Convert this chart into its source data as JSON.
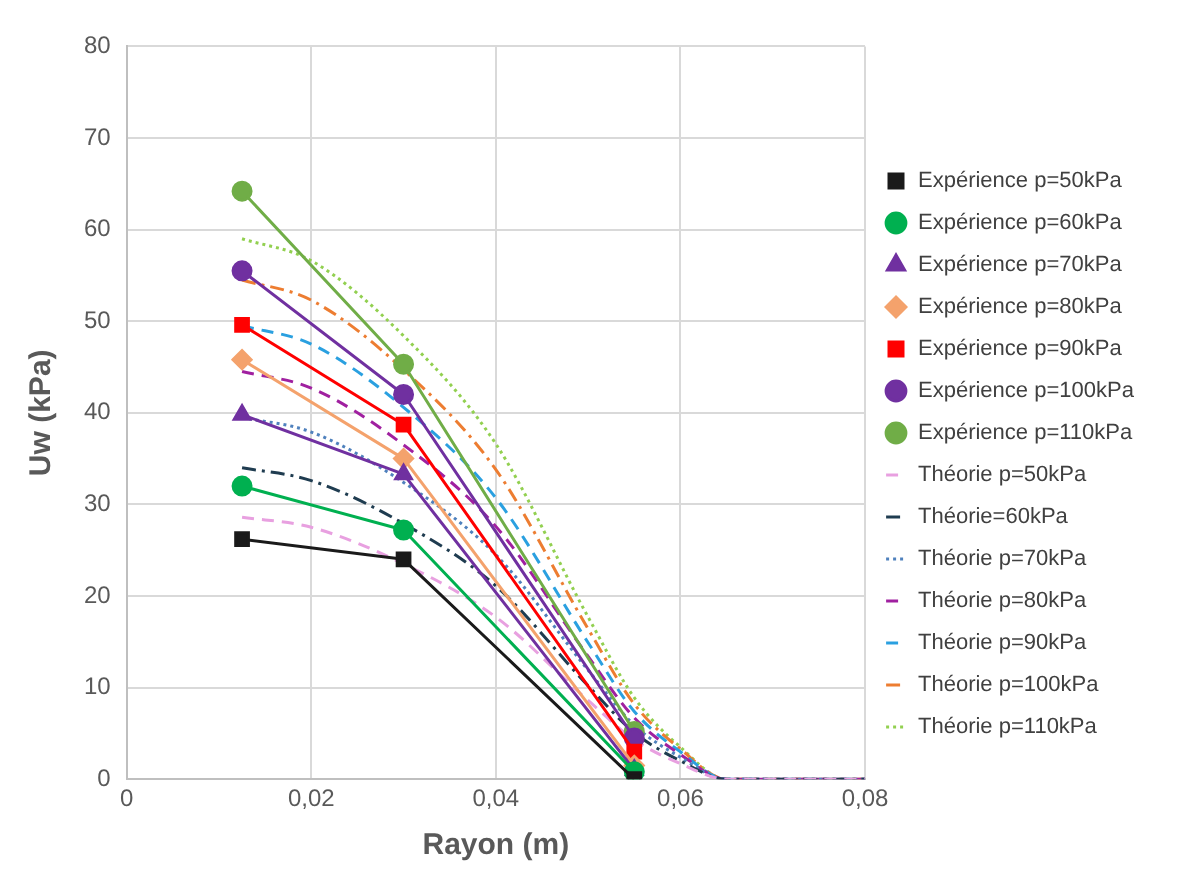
{
  "chart_data": {
    "type": "line",
    "xlabel": "Rayon (m)",
    "ylabel": "Uw (kPa)",
    "xlim": [
      0,
      0.08
    ],
    "ylim": [
      0,
      80
    ],
    "xticks": [
      0,
      {
        "value": 0.02,
        "label": "0,02"
      },
      {
        "value": 0.04,
        "label": "0,04"
      },
      {
        "value": 0.06,
        "label": "0,06"
      },
      {
        "value": 0.08,
        "label": "0,08"
      }
    ],
    "yticks": [
      0,
      10,
      20,
      30,
      40,
      50,
      60,
      70,
      80
    ],
    "grid": true,
    "legend": "right",
    "series": [
      {
        "name": "Expérience p=50kPa",
        "color": "#1a1a1a",
        "marker": "square",
        "line_style": "solid",
        "x": [
          0.0125,
          0.03,
          0.055
        ],
        "values": [
          26.2,
          24,
          0
        ]
      },
      {
        "name": "Expérience p=60kPa",
        "color": "#00b050",
        "marker": "circle",
        "line_style": "solid",
        "x": [
          0.0125,
          0.03,
          0.055
        ],
        "values": [
          32,
          27.2,
          0.8
        ]
      },
      {
        "name": "Expérience p=70kPa",
        "color": "#7030a0",
        "marker": "triangle",
        "line_style": "solid",
        "x": [
          0.0125,
          0.03,
          0.055
        ],
        "values": [
          39.8,
          33.3,
          1
        ]
      },
      {
        "name": "Expérience p=80kPa",
        "color": "#f4a26c",
        "marker": "diamond",
        "line_style": "solid",
        "x": [
          0.0125,
          0.03,
          0.055
        ],
        "values": [
          45.8,
          35,
          1.5
        ]
      },
      {
        "name": "Expérience p=90kPa",
        "color": "#ff0000",
        "marker": "square",
        "line_style": "solid",
        "x": [
          0.0125,
          0.03,
          0.055
        ],
        "values": [
          49.6,
          38.7,
          3
        ]
      },
      {
        "name": "Expérience p=100kPa",
        "color": "#7030a0",
        "marker": "circle",
        "line_style": "solid",
        "x": [
          0.0125,
          0.03,
          0.055
        ],
        "values": [
          55.5,
          42,
          4.5
        ]
      },
      {
        "name": "Expérience p=110kPa",
        "color": "#70ad47",
        "marker": "circle",
        "line_style": "solid",
        "x": [
          0.0125,
          0.03,
          0.055
        ],
        "values": [
          64.2,
          45.3,
          5.2
        ]
      },
      {
        "name": "Théorie p=50kPa",
        "color": "#e8a0e0",
        "marker": "none",
        "line_style": "dashed",
        "x": [
          0.0125,
          0.02,
          0.03,
          0.04,
          0.05,
          0.055,
          0.06,
          0.065,
          0.07,
          0.08
        ],
        "values": [
          28.6,
          27.5,
          23.5,
          17.7,
          8.6,
          4.3,
          1.7,
          0,
          0,
          0
        ]
      },
      {
        "name": "Théorie=60kPa",
        "color": "#1f3c50",
        "marker": "none",
        "line_style": "dashdot",
        "x": [
          0.0125,
          0.02,
          0.03,
          0.04,
          0.05,
          0.055,
          0.06,
          0.065,
          0.07,
          0.08
        ],
        "values": [
          34,
          32.6,
          27.9,
          21.1,
          10.2,
          5.1,
          2,
          0,
          0,
          0
        ]
      },
      {
        "name": "Théorie p=70kPa",
        "color": "#4f81bd",
        "marker": "none",
        "line_style": "dotted",
        "x": [
          0.0125,
          0.02,
          0.03,
          0.04,
          0.05,
          0.055,
          0.06,
          0.065,
          0.07,
          0.08
        ],
        "values": [
          39.5,
          37.9,
          32.4,
          24.5,
          11.9,
          5.9,
          2.4,
          0,
          0,
          0
        ]
      },
      {
        "name": "Théorie p=80kPa",
        "color": "#a020a0",
        "marker": "none",
        "line_style": "dashed",
        "x": [
          0.0125,
          0.02,
          0.03,
          0.04,
          0.05,
          0.055,
          0.06,
          0.065,
          0.07,
          0.08
        ],
        "values": [
          44.5,
          42.7,
          36.5,
          27.6,
          13.4,
          6.7,
          2.7,
          0,
          0,
          0
        ]
      },
      {
        "name": "Théorie p=90kPa",
        "color": "#2aa0e0",
        "marker": "none",
        "line_style": "dashed",
        "x": [
          0.0125,
          0.02,
          0.03,
          0.04,
          0.05,
          0.055,
          0.06,
          0.065,
          0.07,
          0.08
        ],
        "values": [
          49.5,
          47.5,
          40.6,
          30.7,
          14.9,
          7.4,
          3,
          0,
          0,
          0
        ]
      },
      {
        "name": "Théorie p=100kPa",
        "color": "#ed7d31",
        "marker": "none",
        "line_style": "dashdot",
        "x": [
          0.0125,
          0.02,
          0.03,
          0.04,
          0.05,
          0.055,
          0.06,
          0.065,
          0.07,
          0.08
        ],
        "values": [
          54.5,
          52.3,
          44.7,
          33.8,
          16.4,
          8.2,
          3.3,
          0,
          0,
          0
        ]
      },
      {
        "name": "Théorie p=110kPa",
        "color": "#92d050",
        "marker": "none",
        "line_style": "dotted",
        "x": [
          0.0125,
          0.02,
          0.03,
          0.04,
          0.05,
          0.055,
          0.06,
          0.065,
          0.07,
          0.08
        ],
        "values": [
          59,
          56.6,
          48.4,
          36.6,
          17.7,
          8.9,
          3.5,
          0,
          0,
          0
        ]
      }
    ]
  }
}
